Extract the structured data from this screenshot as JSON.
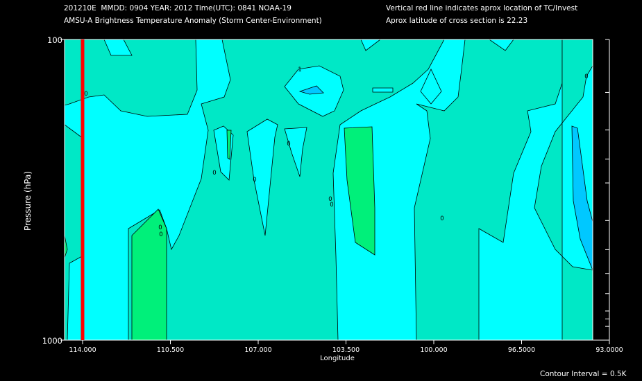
{
  "header": {
    "line1_left": "201210E  MMDD: 0904 YEAR: 2012 Time(UTC): 0841 NOAA-19",
    "line2_left": "AMSU-A Brightness Temperature Anomaly (Storm Center-Environment)",
    "line1_right": "Vertical red line indicates aprox location of TC/Invest",
    "line2_right": "Aprox latitude of cross section is 22.23"
  },
  "footer": {
    "contour_interval": "Contour Interval = 0.5K"
  },
  "colors": {
    "background": "#000000",
    "base_fill": "#00ffff",
    "level_0": "#00e8c6",
    "level_05": "#00f07a",
    "negative": "#00c8ff",
    "contour_line": "#000000",
    "tc_line": "#ff0000"
  },
  "chart_data": {
    "type": "contour",
    "title": "AMSU-A Brightness Temperature Anomaly (Storm Center-Environment)",
    "xlabel": "Longitude",
    "ylabel": "Pressure (hPa)",
    "x_ticks": [
      "114.000",
      "110.500",
      "107.000",
      "103.500",
      "100.000",
      "96.5000",
      "93.0000"
    ],
    "x_tick_values": [
      114.0,
      110.5,
      107.0,
      103.5,
      100.0,
      96.5,
      93.0
    ],
    "xlim": [
      114.5,
      93.0
    ],
    "y_ticks": [
      "100",
      "1000"
    ],
    "y_tick_values": [
      100,
      1000
    ],
    "ylim": [
      1000,
      100
    ],
    "y_scale": "log",
    "tc_longitude": 114.0,
    "contour_interval": 0.5,
    "contour_labels": [
      "0",
      "0",
      "1",
      "0",
      "0",
      "0",
      "0",
      "0",
      "0",
      "0",
      "0"
    ]
  }
}
